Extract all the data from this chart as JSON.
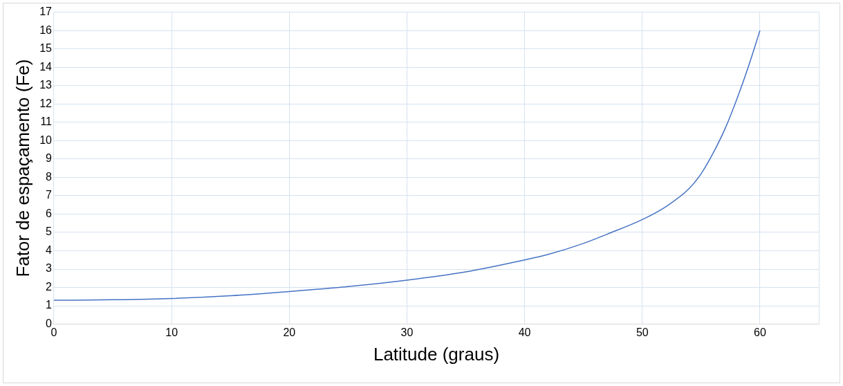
{
  "chart_data": {
    "type": "line",
    "xlabel": "Latitude (graus)",
    "ylabel": "Fator de espaçamento (Fe)",
    "x": [
      0,
      5,
      10,
      15,
      20,
      25,
      30,
      35,
      40,
      42,
      45,
      47,
      50,
      52,
      54,
      55,
      56,
      57,
      58,
      59,
      60
    ],
    "series": [
      {
        "color": "#4472c4",
        "values": [
          1.3,
          1.33,
          1.4,
          1.55,
          1.78,
          2.05,
          2.4,
          2.85,
          3.5,
          3.8,
          4.4,
          4.9,
          5.7,
          6.4,
          7.4,
          8.2,
          9.3,
          10.6,
          12.2,
          14.0,
          16
        ]
      }
    ],
    "xlim": [
      0,
      65
    ],
    "xticks": [
      0,
      10,
      20,
      30,
      40,
      50,
      60,
      {
        "value": 65,
        "label": null
      }
    ],
    "ylim": [
      0,
      17
    ],
    "yticks": [
      0,
      1,
      2,
      3,
      4,
      5,
      6,
      7,
      8,
      9,
      10,
      11,
      12,
      13,
      14,
      15,
      16,
      17
    ],
    "grid": true,
    "legend": false,
    "marker": "none",
    "line_style": "solid"
  }
}
